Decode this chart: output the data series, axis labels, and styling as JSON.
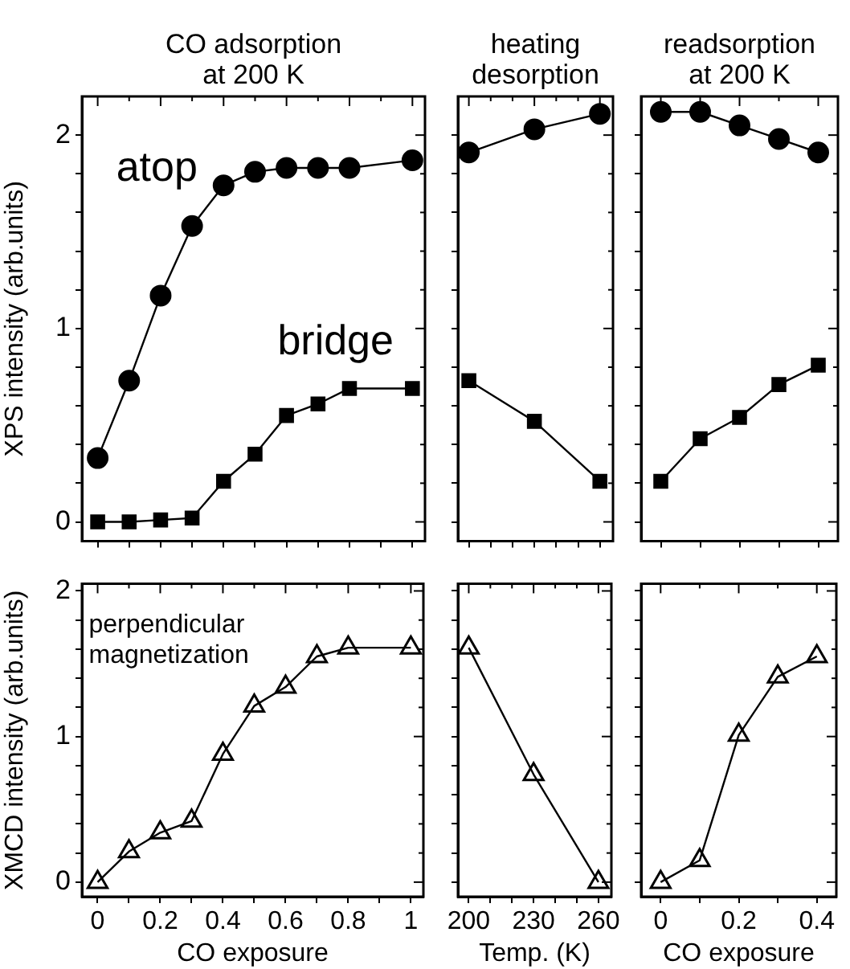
{
  "chart_data": [
    {
      "type": "line",
      "title": "CO adsorption\nat 200 K",
      "ylabel": "XPS intensity (arb.units)",
      "x": [
        0,
        0.1,
        0.2,
        0.3,
        0.4,
        0.5,
        0.6,
        0.7,
        0.8,
        1
      ],
      "xlim": [
        -0.05,
        1.04
      ],
      "xticks": [
        0,
        {
          "value": 0.1,
          "label": null
        },
        0.2,
        {
          "value": 0.3,
          "label": null
        },
        0.4,
        {
          "value": 0.5,
          "label": null
        },
        0.6,
        {
          "value": 0.7,
          "label": null
        },
        0.8,
        {
          "value": 0.9,
          "label": null
        },
        1
      ],
      "ylim": [
        -0.1,
        2.2
      ],
      "yticks": [
        0,
        {
          "value": 0.2,
          "label": null
        },
        {
          "value": 0.4,
          "label": null
        },
        {
          "value": 0.6,
          "label": null
        },
        {
          "value": 0.8,
          "label": null
        },
        1,
        {
          "value": 1.2,
          "label": null
        },
        {
          "value": 1.4,
          "label": null
        },
        {
          "value": 1.6,
          "label": null
        },
        {
          "value": 1.8,
          "label": null
        },
        2
      ],
      "tick_labels": "y",
      "grid": false,
      "legend": "top left",
      "series": [
        {
          "name": "atop",
          "color": "#000000",
          "marker": "circle",
          "values": [
            0.33,
            0.73,
            1.17,
            1.53,
            1.74,
            1.81,
            1.83,
            1.83,
            1.83,
            1.87
          ]
        },
        {
          "name": "bridge",
          "color": "#000000",
          "marker": "square",
          "values": [
            0,
            0,
            0.01,
            0.02,
            0.21,
            0.35,
            0.55,
            0.61,
            0.69,
            0.69
          ]
        }
      ]
    },
    {
      "type": "line",
      "title": "heating\ndesorption",
      "x": [
        200,
        230,
        260
      ],
      "xlim": [
        195,
        266
      ],
      "xticks": [
        200,
        {
          "value": 210,
          "label": null
        },
        {
          "value": 220,
          "label": null
        },
        230,
        {
          "value": 240,
          "label": null
        },
        {
          "value": 250,
          "label": null
        },
        260
      ],
      "ylim": [
        -0.1,
        2.2
      ],
      "yticks": [
        0,
        {
          "value": 0.2,
          "label": null
        },
        {
          "value": 0.4,
          "label": null
        },
        {
          "value": 0.6,
          "label": null
        },
        {
          "value": 0.8,
          "label": null
        },
        1,
        {
          "value": 1.2,
          "label": null
        },
        {
          "value": 1.4,
          "label": null
        },
        {
          "value": 1.6,
          "label": null
        },
        {
          "value": 1.8,
          "label": null
        },
        2
      ],
      "tick_labels": false,
      "grid": false,
      "legend": false,
      "series": [
        {
          "color": "#000000",
          "marker": "circle",
          "values": [
            1.91,
            2.03,
            2.11
          ]
        },
        {
          "color": "#000000",
          "marker": "square",
          "values": [
            0.73,
            0.52,
            0.21
          ]
        }
      ]
    },
    {
      "type": "line",
      "title": "readsorption\nat 200 K",
      "x": [
        0,
        0.1,
        0.2,
        0.3,
        0.4
      ],
      "xlim": [
        -0.05,
        0.45
      ],
      "xticks": [
        0,
        {
          "value": 0.1,
          "label": null
        },
        0.2,
        {
          "value": 0.3,
          "label": null
        },
        0.4
      ],
      "ylim": [
        -0.1,
        2.2
      ],
      "yticks": [
        0,
        {
          "value": 0.2,
          "label": null
        },
        {
          "value": 0.4,
          "label": null
        },
        {
          "value": 0.6,
          "label": null
        },
        {
          "value": 0.8,
          "label": null
        },
        1,
        {
          "value": 1.2,
          "label": null
        },
        {
          "value": 1.4,
          "label": null
        },
        {
          "value": 1.6,
          "label": null
        },
        {
          "value": 1.8,
          "label": null
        },
        2
      ],
      "tick_labels": false,
      "grid": false,
      "legend": false,
      "series": [
        {
          "color": "#000000",
          "marker": "circle",
          "values": [
            2.12,
            2.12,
            2.05,
            1.98,
            1.91
          ]
        },
        {
          "color": "#000000",
          "marker": "square",
          "values": [
            0.21,
            0.43,
            0.54,
            0.71,
            0.81
          ]
        }
      ]
    },
    {
      "type": "line",
      "xlabel": "CO exposure",
      "ylabel": "XMCD intensity (arb.units)",
      "x": [
        0,
        0.1,
        0.2,
        0.3,
        0.4,
        0.5,
        0.6,
        0.7,
        0.8,
        1
      ],
      "xlim": [
        -0.05,
        1.04
      ],
      "xticks": [
        0,
        {
          "value": 0.1,
          "label": null
        },
        0.2,
        {
          "value": 0.3,
          "label": null
        },
        0.4,
        {
          "value": 0.5,
          "label": null
        },
        0.6,
        {
          "value": 0.7,
          "label": null
        },
        0.8,
        {
          "value": 0.9,
          "label": null
        },
        1
      ],
      "ylim": [
        -0.1,
        2.05
      ],
      "yticks": [
        0,
        {
          "value": 0.2,
          "label": null
        },
        {
          "value": 0.4,
          "label": null
        },
        {
          "value": 0.6,
          "label": null
        },
        {
          "value": 0.8,
          "label": null
        },
        1,
        {
          "value": 1.2,
          "label": null
        },
        {
          "value": 1.4,
          "label": null
        },
        {
          "value": 1.6,
          "label": null
        },
        {
          "value": 1.8,
          "label": null
        },
        2
      ],
      "grid": false,
      "legend": "top left",
      "series": [
        {
          "name": "perpendicular\nmagnetization",
          "color": "#000000",
          "marker": "triangle",
          "values": [
            0,
            0.21,
            0.34,
            0.42,
            0.88,
            1.21,
            1.34,
            1.55,
            1.61,
            1.61
          ]
        }
      ]
    },
    {
      "type": "line",
      "xlabel": "Temp. (K)",
      "x": [
        200,
        230,
        260
      ],
      "xlim": [
        195,
        266
      ],
      "xticks": [
        200,
        {
          "value": 210,
          "label": null
        },
        {
          "value": 220,
          "label": null
        },
        230,
        {
          "value": 240,
          "label": null
        },
        {
          "value": 250,
          "label": null
        },
        260
      ],
      "ylim": [
        -0.1,
        2.05
      ],
      "yticks": [
        0,
        {
          "value": 0.2,
          "label": null
        },
        {
          "value": 0.4,
          "label": null
        },
        {
          "value": 0.6,
          "label": null
        },
        {
          "value": 0.8,
          "label": null
        },
        1,
        {
          "value": 1.2,
          "label": null
        },
        {
          "value": 1.4,
          "label": null
        },
        {
          "value": 1.6,
          "label": null
        },
        {
          "value": 1.8,
          "label": null
        },
        2
      ],
      "tick_labels": "x",
      "grid": false,
      "legend": false,
      "series": [
        {
          "color": "#000000",
          "marker": "triangle",
          "values": [
            1.61,
            0.74,
            0
          ]
        }
      ]
    },
    {
      "type": "line",
      "xlabel": "CO exposure",
      "x": [
        0,
        0.1,
        0.2,
        0.3,
        0.4
      ],
      "xlim": [
        -0.05,
        0.45
      ],
      "xticks": [
        0,
        {
          "value": 0.1,
          "label": null
        },
        0.2,
        {
          "value": 0.3,
          "label": null
        },
        0.4
      ],
      "ylim": [
        -0.1,
        2.05
      ],
      "yticks": [
        0,
        {
          "value": 0.2,
          "label": null
        },
        {
          "value": 0.4,
          "label": null
        },
        {
          "value": 0.6,
          "label": null
        },
        {
          "value": 0.8,
          "label": null
        },
        1,
        {
          "value": 1.2,
          "label": null
        },
        {
          "value": 1.4,
          "label": null
        },
        {
          "value": 1.6,
          "label": null
        },
        {
          "value": 1.8,
          "label": null
        },
        2
      ],
      "tick_labels": "x",
      "grid": false,
      "legend": false,
      "series": [
        {
          "color": "#000000",
          "marker": "triangle",
          "values": [
            0,
            0.15,
            1.01,
            1.41,
            1.55
          ]
        }
      ]
    }
  ]
}
